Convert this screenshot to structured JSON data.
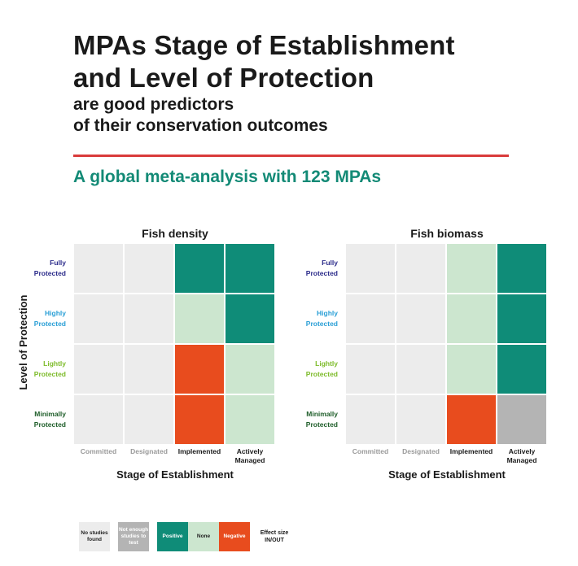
{
  "title": {
    "line1": "MPAs Stage of Establishment",
    "line2": "and Level of Protection",
    "line3": "are good predictors",
    "line4": "of their conservation outcomes"
  },
  "subtitle": "A global meta-analysis with 123 MPAs",
  "y_axis_label": "Level of Protection",
  "x_axis_label": "Stage of Establishment",
  "rows": [
    {
      "label_a": "Fully",
      "label_b": "Protected",
      "color": "#2b2b8a"
    },
    {
      "label_a": "Highly",
      "label_b": "Protected",
      "color": "#2a9fd6"
    },
    {
      "label_a": "Lightly",
      "label_b": "Protected",
      "color": "#7dbb2a"
    },
    {
      "label_a": "Minimally",
      "label_b": "Protected",
      "color": "#1f5e2a"
    }
  ],
  "columns": [
    {
      "label_a": "Committed",
      "label_b": "",
      "color": "#9a9a9a"
    },
    {
      "label_a": "Designated",
      "label_b": "",
      "color": "#9a9a9a"
    },
    {
      "label_a": "Implemented",
      "label_b": "",
      "color": "#1a1a1a"
    },
    {
      "label_a": "Actively",
      "label_b": "Managed",
      "color": "#1a1a1a"
    }
  ],
  "colors": {
    "no_studies": "#ececec",
    "not_enough": "#b4b4b4",
    "positive": "#0f8c78",
    "none": "#cce6cf",
    "negative": "#e84c1e"
  },
  "panels": [
    {
      "title": "Fish density",
      "cells": [
        [
          "no_studies",
          "no_studies",
          "positive",
          "positive"
        ],
        [
          "no_studies",
          "no_studies",
          "none",
          "positive"
        ],
        [
          "no_studies",
          "no_studies",
          "negative",
          "none"
        ],
        [
          "no_studies",
          "no_studies",
          "negative",
          "none"
        ]
      ]
    },
    {
      "title": "Fish biomass",
      "cells": [
        [
          "no_studies",
          "no_studies",
          "none",
          "positive"
        ],
        [
          "no_studies",
          "no_studies",
          "none",
          "positive"
        ],
        [
          "no_studies",
          "no_studies",
          "none",
          "positive"
        ],
        [
          "no_studies",
          "no_studies",
          "negative",
          "not_enough"
        ]
      ]
    }
  ],
  "legend": {
    "no_studies": "No studies found",
    "not_enough": "Not enough studies to test",
    "positive": "Positive",
    "none": "None",
    "negative": "Negative",
    "note": "Effect size IN/OUT"
  }
}
